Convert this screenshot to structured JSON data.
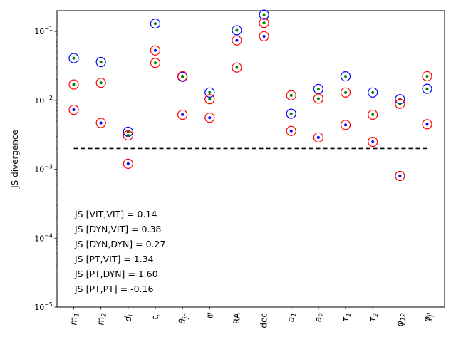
{
  "chart_data": {
    "type": "scatter",
    "ylabel": "JS divergence",
    "yscale": "log",
    "ylim": [
      1e-05,
      0.2
    ],
    "yticks": [
      {
        "value": 1e-05,
        "base": "10",
        "exp": "−5"
      },
      {
        "value": 0.0001,
        "base": "10",
        "exp": "−4"
      },
      {
        "value": 0.001,
        "base": "10",
        "exp": "−3"
      },
      {
        "value": 0.01,
        "base": "10",
        "exp": "−2"
      },
      {
        "value": 0.1,
        "base": "10",
        "exp": "−1"
      }
    ],
    "categories": [
      {
        "label": "m",
        "sub": "1"
      },
      {
        "label": "m",
        "sub": "2"
      },
      {
        "label": "d",
        "sub": "L"
      },
      {
        "label": "t",
        "sub": "c"
      },
      {
        "label": "θ",
        "sub": "jn"
      },
      {
        "label": "ψ",
        "sub": ""
      },
      {
        "label": "RA",
        "sub": "",
        "roman": true
      },
      {
        "label": "dec",
        "sub": "",
        "roman": true
      },
      {
        "label": "a",
        "sub": "1"
      },
      {
        "label": "a",
        "sub": "2"
      },
      {
        "label": "τ",
        "sub": "1"
      },
      {
        "label": "τ",
        "sub": "2"
      },
      {
        "label": "φ",
        "sub": "12"
      },
      {
        "label": "φ",
        "sub": "jl"
      }
    ],
    "ring_series": [
      {
        "ring_color": "#0000ff",
        "dot_color": "#008000",
        "values": [
          0.041,
          0.036,
          0.0035,
          0.13,
          0.022,
          0.013,
          0.104,
          0.175,
          0.0064,
          0.0146,
          0.0223,
          0.013,
          0.0104,
          0.0147
        ]
      },
      {
        "ring_color": "#ff0000",
        "dot_color": "#008000",
        "values": [
          0.017,
          0.018,
          0.0031,
          0.035,
          0.0224,
          0.0104,
          0.03,
          0.133,
          0.0118,
          0.0106,
          0.013,
          0.0062,
          0.0089,
          0.0224
        ]
      },
      {
        "ring_color": "#ff0000",
        "dot_color": "#0000ff",
        "values": [
          0.0073,
          0.0047,
          0.0012,
          0.053,
          0.0062,
          0.0056,
          0.074,
          0.085,
          0.0036,
          0.0029,
          0.0044,
          0.0025,
          0.0008,
          0.0045
        ]
      }
    ],
    "threshold": {
      "value": 0.002,
      "color": "#000000",
      "style": "dashed"
    },
    "annotations": [
      "JS [VIT,VIT] = 0.14",
      "JS [DYN,VIT] = 0.38",
      "JS [DYN,DYN] = 0.27",
      "JS [PT,VIT] = 1.34",
      "JS [PT,DYN] = 1.60",
      "JS [PT,PT] = -0.16"
    ]
  }
}
